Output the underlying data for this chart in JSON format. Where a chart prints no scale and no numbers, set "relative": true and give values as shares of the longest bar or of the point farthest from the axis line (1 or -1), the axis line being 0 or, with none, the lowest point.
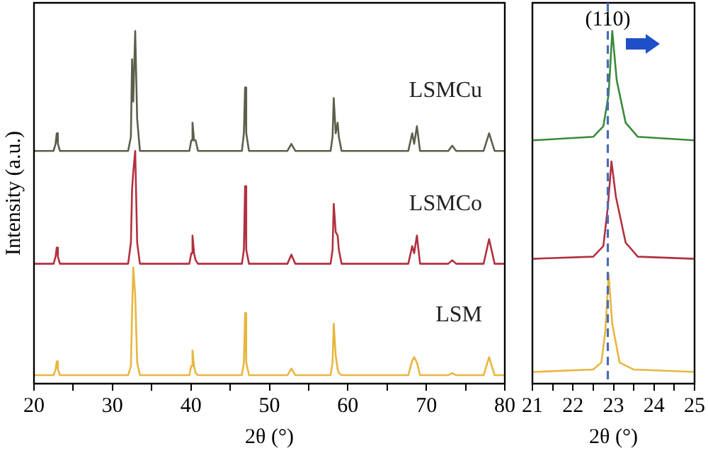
{
  "chart_data": [
    {
      "type": "line",
      "xlabel": "2θ (°)",
      "ylabel": "Intensity (a.u.)",
      "relative": true,
      "grid": false,
      "legend": false,
      "marker": "none",
      "xlim": [
        20,
        80
      ],
      "xticks": [
        20,
        {
          "value": 25,
          "label": null
        },
        30,
        {
          "value": 35,
          "label": null
        },
        40,
        {
          "value": 45,
          "label": null
        },
        50,
        {
          "value": 55,
          "label": null
        },
        60,
        {
          "value": 65,
          "label": null
        },
        70,
        {
          "value": 75,
          "label": null
        },
        80
      ],
      "x": [
        20,
        22.5,
        22.75,
        22.9,
        23.05,
        23.3,
        32.0,
        32.35,
        32.5,
        32.65,
        32.9,
        33.15,
        33.5,
        39.8,
        40.05,
        40.2,
        40.4,
        40.6,
        40.9,
        46.5,
        46.75,
        46.9,
        47.05,
        47.4,
        52.3,
        52.8,
        53.3,
        57.8,
        58.05,
        58.2,
        58.45,
        58.7,
        58.85,
        59.2,
        67.7,
        68.2,
        68.45,
        68.8,
        69.2,
        72.8,
        73.3,
        73.8,
        77.3,
        78.0,
        78.7,
        80
      ],
      "series": [
        {
          "name": "LSMCu",
          "color": "#5b604c",
          "values": [
            0.66,
            0.66,
            0.68,
            0.71,
            0.68,
            0.66,
            0.66,
            0.7,
            0.92,
            0.8,
            1.0,
            0.75,
            0.66,
            0.66,
            0.69,
            0.74,
            0.69,
            0.69,
            0.66,
            0.66,
            0.71,
            0.84,
            0.71,
            0.66,
            0.66,
            0.68,
            0.66,
            0.66,
            0.7,
            0.81,
            0.71,
            0.74,
            0.7,
            0.66,
            0.66,
            0.71,
            0.68,
            0.73,
            0.66,
            0.66,
            0.675,
            0.66,
            0.66,
            0.71,
            0.66,
            0.66
          ]
        },
        {
          "name": "LSMCo",
          "color": "#b2303f",
          "values": [
            0.34,
            0.34,
            0.36,
            0.386,
            0.36,
            0.34,
            0.34,
            0.4,
            0.55,
            0.6,
            0.66,
            0.4,
            0.34,
            0.34,
            0.37,
            0.42,
            0.37,
            0.35,
            0.34,
            0.34,
            0.38,
            0.56,
            0.38,
            0.34,
            0.34,
            0.366,
            0.34,
            0.34,
            0.38,
            0.51,
            0.43,
            0.42,
            0.38,
            0.34,
            0.34,
            0.39,
            0.37,
            0.42,
            0.34,
            0.34,
            0.35,
            0.34,
            0.34,
            0.41,
            0.34,
            0.34
          ]
        },
        {
          "name": "LSM",
          "color": "#e8b640",
          "values": [
            0.024,
            0.024,
            0.04,
            0.063,
            0.04,
            0.024,
            0.024,
            0.05,
            0.2,
            0.33,
            0.25,
            0.06,
            0.024,
            0.024,
            0.05,
            0.094,
            0.05,
            0.03,
            0.024,
            0.024,
            0.06,
            0.2,
            0.06,
            0.024,
            0.024,
            0.043,
            0.024,
            0.024,
            0.06,
            0.17,
            0.08,
            0.04,
            0.03,
            0.024,
            0.024,
            0.065,
            0.075,
            0.06,
            0.024,
            0.024,
            0.03,
            0.024,
            0.024,
            0.075,
            0.024,
            0.024
          ]
        }
      ]
    },
    {
      "type": "line",
      "xlabel": "2θ (°)",
      "relative": true,
      "grid": false,
      "legend": false,
      "marker": "none",
      "xlim": [
        21,
        25
      ],
      "xticks": [
        21,
        {
          "value": 21.5,
          "label": null
        },
        22,
        {
          "value": 22.5,
          "label": null
        },
        23,
        {
          "value": 23.5,
          "label": null
        },
        24,
        {
          "value": 24.5,
          "label": null
        },
        25
      ],
      "ref_lines": [
        {
          "axis": "x",
          "value": 22.86,
          "color": "#4a6bb5",
          "line_style": "dashed"
        }
      ],
      "annotations": [
        "(110)"
      ],
      "series": [
        {
          "color": "#3a8a3a",
          "x": [
            21,
            22.5,
            22.75,
            22.88,
            22.97,
            23.08,
            23.3,
            23.6,
            25
          ],
          "values": [
            0.69,
            0.7,
            0.73,
            0.82,
            1.0,
            0.86,
            0.74,
            0.7,
            0.69
          ]
        },
        {
          "color": "#b2303f",
          "x": [
            21,
            22.5,
            22.75,
            22.86,
            22.95,
            23.06,
            23.3,
            23.6,
            25
          ],
          "values": [
            0.354,
            0.36,
            0.39,
            0.5,
            0.63,
            0.53,
            0.4,
            0.36,
            0.354
          ]
        },
        {
          "color": "#e8b640",
          "x": [
            21,
            22.5,
            22.7,
            22.8,
            22.88,
            22.97,
            23.15,
            23.5,
            25
          ],
          "values": [
            0.033,
            0.04,
            0.06,
            0.15,
            0.31,
            0.17,
            0.06,
            0.04,
            0.033
          ]
        }
      ]
    }
  ]
}
